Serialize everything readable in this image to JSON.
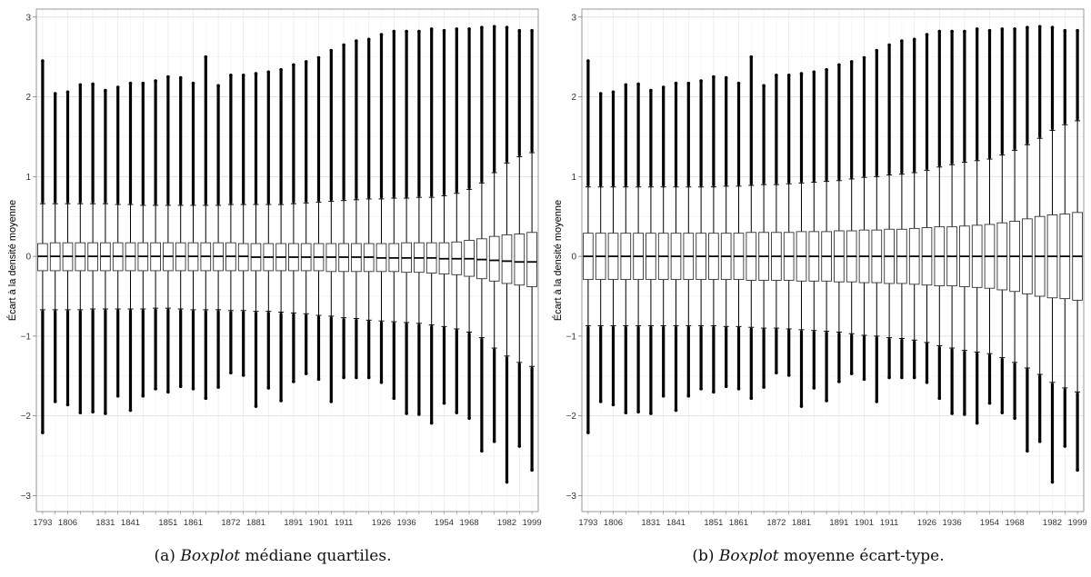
{
  "chart_data": [
    {
      "type": "boxplot",
      "panel_label": "(a)",
      "caption_emph": "Boxplot",
      "caption_rest": "médiane quartiles.",
      "ylabel": "Écart à la densité moyenne",
      "ylim": [
        -3.2,
        3.1
      ],
      "yticks": [
        -3,
        -2,
        -1,
        0,
        1,
        2,
        3
      ],
      "xtick_labels": [
        "1793",
        "1806",
        "1831",
        "1841",
        "1851",
        "1861",
        "1872",
        "1881",
        "1891",
        "1901",
        "1911",
        "1926",
        "1936",
        "1954",
        "1968",
        "1982",
        "1999"
      ],
      "grid": true,
      "median": [
        0,
        0,
        0,
        0,
        0,
        0,
        0,
        0,
        0,
        0,
        0,
        0,
        0,
        0,
        0,
        0,
        0,
        -0.01,
        -0.01,
        -0.01,
        -0.01,
        -0.01,
        -0.01,
        -0.01,
        -0.01,
        -0.01,
        -0.01,
        -0.02,
        -0.02,
        -0.02,
        -0.02,
        -0.02,
        -0.03,
        -0.03,
        -0.03,
        -0.04,
        -0.05,
        -0.06,
        -0.07,
        -0.07
      ],
      "q1": [
        -0.18,
        -0.18,
        -0.18,
        -0.18,
        -0.18,
        -0.18,
        -0.18,
        -0.18,
        -0.18,
        -0.18,
        -0.18,
        -0.18,
        -0.18,
        -0.18,
        -0.18,
        -0.18,
        -0.18,
        -0.18,
        -0.18,
        -0.18,
        -0.18,
        -0.18,
        -0.18,
        -0.19,
        -0.19,
        -0.19,
        -0.19,
        -0.19,
        -0.19,
        -0.2,
        -0.2,
        -0.21,
        -0.22,
        -0.23,
        -0.25,
        -0.28,
        -0.31,
        -0.34,
        -0.36,
        -0.38
      ],
      "q3": [
        0.16,
        0.17,
        0.17,
        0.17,
        0.17,
        0.17,
        0.17,
        0.17,
        0.17,
        0.17,
        0.17,
        0.17,
        0.17,
        0.17,
        0.17,
        0.17,
        0.16,
        0.16,
        0.16,
        0.16,
        0.16,
        0.16,
        0.16,
        0.16,
        0.16,
        0.16,
        0.16,
        0.16,
        0.16,
        0.17,
        0.17,
        0.17,
        0.17,
        0.18,
        0.2,
        0.22,
        0.25,
        0.27,
        0.28,
        0.3
      ],
      "whisker_low": [
        -0.67,
        -0.67,
        -0.67,
        -0.67,
        -0.66,
        -0.66,
        -0.66,
        -0.66,
        -0.66,
        -0.65,
        -0.65,
        -0.66,
        -0.67,
        -0.67,
        -0.67,
        -0.68,
        -0.68,
        -0.69,
        -0.69,
        -0.7,
        -0.71,
        -0.72,
        -0.74,
        -0.75,
        -0.77,
        -0.78,
        -0.8,
        -0.81,
        -0.82,
        -0.83,
        -0.84,
        -0.86,
        -0.88,
        -0.91,
        -0.95,
        -1.02,
        -1.15,
        -1.25,
        -1.33,
        -1.38
      ],
      "whisker_high": [
        0.66,
        0.66,
        0.66,
        0.66,
        0.66,
        0.66,
        0.65,
        0.65,
        0.64,
        0.64,
        0.64,
        0.64,
        0.64,
        0.64,
        0.64,
        0.65,
        0.65,
        0.65,
        0.65,
        0.65,
        0.66,
        0.67,
        0.68,
        0.69,
        0.7,
        0.71,
        0.72,
        0.72,
        0.73,
        0.73,
        0.74,
        0.74,
        0.76,
        0.79,
        0.84,
        0.92,
        1.05,
        1.17,
        1.25,
        1.3
      ],
      "outlier_max": [
        2.45,
        2.04,
        2.06,
        2.15,
        2.16,
        2.08,
        2.12,
        2.17,
        2.17,
        2.2,
        2.25,
        2.24,
        2.17,
        2.5,
        2.14,
        2.27,
        2.27,
        2.29,
        2.31,
        2.34,
        2.4,
        2.44,
        2.49,
        2.58,
        2.65,
        2.7,
        2.72,
        2.78,
        2.82,
        2.82,
        2.82,
        2.85,
        2.83,
        2.85,
        2.85,
        2.87,
        2.88,
        2.87,
        2.83,
        2.83
      ],
      "outlier_min": [
        -2.21,
        -1.82,
        -1.86,
        -1.96,
        -1.95,
        -1.97,
        -1.75,
        -1.93,
        -1.75,
        -1.66,
        -1.7,
        -1.63,
        -1.66,
        -1.78,
        -1.64,
        -1.46,
        -1.49,
        -1.88,
        -1.65,
        -1.81,
        -1.57,
        -1.47,
        -1.54,
        -1.82,
        -1.52,
        -1.52,
        -1.52,
        -1.58,
        -1.78,
        -1.97,
        -1.98,
        -2.09,
        -1.84,
        -1.96,
        -2.03,
        -2.44,
        -2.32,
        -2.83,
        -2.38,
        -2.68
      ]
    },
    {
      "type": "boxplot",
      "panel_label": "(b)",
      "caption_emph": "Boxplot",
      "caption_rest": "moyenne écart-type.",
      "ylabel": "Écart à la densité moyenne",
      "ylim": [
        -3.2,
        3.1
      ],
      "yticks": [
        -3,
        -2,
        -1,
        0,
        1,
        2,
        3
      ],
      "xtick_labels": [
        "1793",
        "1806",
        "1831",
        "1841",
        "1851",
        "1861",
        "1872",
        "1881",
        "1891",
        "1901",
        "1911",
        "1926",
        "1936",
        "1954",
        "1968",
        "1982",
        "1999"
      ],
      "grid": true,
      "median": [
        0,
        0,
        0,
        0,
        0,
        0,
        0,
        0,
        0,
        0,
        0,
        0,
        0,
        0,
        0,
        0,
        0,
        0,
        0,
        0,
        0,
        0,
        0,
        0,
        0,
        0,
        0,
        0,
        0,
        0,
        0,
        0,
        0,
        0,
        0,
        0,
        0,
        0,
        0,
        0
      ],
      "q1": [
        -0.29,
        -0.29,
        -0.29,
        -0.29,
        -0.29,
        -0.29,
        -0.29,
        -0.29,
        -0.29,
        -0.29,
        -0.29,
        -0.29,
        -0.29,
        -0.3,
        -0.3,
        -0.3,
        -0.3,
        -0.31,
        -0.31,
        -0.31,
        -0.32,
        -0.32,
        -0.33,
        -0.33,
        -0.34,
        -0.34,
        -0.35,
        -0.36,
        -0.37,
        -0.37,
        -0.38,
        -0.39,
        -0.4,
        -0.42,
        -0.44,
        -0.47,
        -0.5,
        -0.52,
        -0.53,
        -0.55
      ],
      "q3": [
        0.29,
        0.29,
        0.29,
        0.29,
        0.29,
        0.29,
        0.29,
        0.29,
        0.29,
        0.29,
        0.29,
        0.29,
        0.29,
        0.3,
        0.3,
        0.3,
        0.3,
        0.31,
        0.31,
        0.31,
        0.32,
        0.32,
        0.33,
        0.33,
        0.34,
        0.34,
        0.35,
        0.36,
        0.37,
        0.37,
        0.38,
        0.39,
        0.4,
        0.42,
        0.44,
        0.47,
        0.5,
        0.52,
        0.53,
        0.55
      ],
      "whisker_low": [
        -0.87,
        -0.87,
        -0.87,
        -0.87,
        -0.87,
        -0.87,
        -0.87,
        -0.87,
        -0.87,
        -0.87,
        -0.87,
        -0.88,
        -0.88,
        -0.89,
        -0.9,
        -0.9,
        -0.91,
        -0.92,
        -0.93,
        -0.94,
        -0.95,
        -0.97,
        -0.99,
        -1.0,
        -1.02,
        -1.03,
        -1.05,
        -1.08,
        -1.12,
        -1.15,
        -1.18,
        -1.2,
        -1.22,
        -1.27,
        -1.33,
        -1.4,
        -1.48,
        -1.58,
        -1.65,
        -1.7
      ],
      "whisker_high": [
        0.87,
        0.87,
        0.87,
        0.87,
        0.87,
        0.87,
        0.87,
        0.87,
        0.87,
        0.87,
        0.87,
        0.88,
        0.88,
        0.89,
        0.9,
        0.9,
        0.91,
        0.92,
        0.93,
        0.94,
        0.95,
        0.97,
        0.99,
        1.0,
        1.02,
        1.03,
        1.05,
        1.08,
        1.12,
        1.15,
        1.18,
        1.2,
        1.22,
        1.27,
        1.33,
        1.4,
        1.48,
        1.58,
        1.65,
        1.7
      ],
      "outlier_max": [
        2.45,
        2.04,
        2.06,
        2.15,
        2.16,
        2.08,
        2.12,
        2.17,
        2.17,
        2.2,
        2.25,
        2.24,
        2.17,
        2.5,
        2.14,
        2.27,
        2.27,
        2.29,
        2.31,
        2.34,
        2.4,
        2.44,
        2.49,
        2.58,
        2.65,
        2.7,
        2.72,
        2.78,
        2.82,
        2.82,
        2.82,
        2.85,
        2.83,
        2.85,
        2.85,
        2.87,
        2.88,
        2.87,
        2.83,
        2.83
      ],
      "outlier_min": [
        -2.21,
        -1.82,
        -1.86,
        -1.96,
        -1.95,
        -1.97,
        -1.75,
        -1.93,
        -1.75,
        -1.66,
        -1.7,
        -1.63,
        -1.66,
        -1.78,
        -1.64,
        -1.46,
        -1.49,
        -1.88,
        -1.65,
        -1.81,
        -1.57,
        -1.47,
        -1.54,
        -1.82,
        -1.52,
        -1.52,
        -1.52,
        -1.58,
        -1.78,
        -1.97,
        -1.98,
        -2.09,
        -1.84,
        -1.96,
        -2.03,
        -2.44,
        -2.32,
        -2.83,
        -2.38,
        -2.68
      ]
    }
  ]
}
